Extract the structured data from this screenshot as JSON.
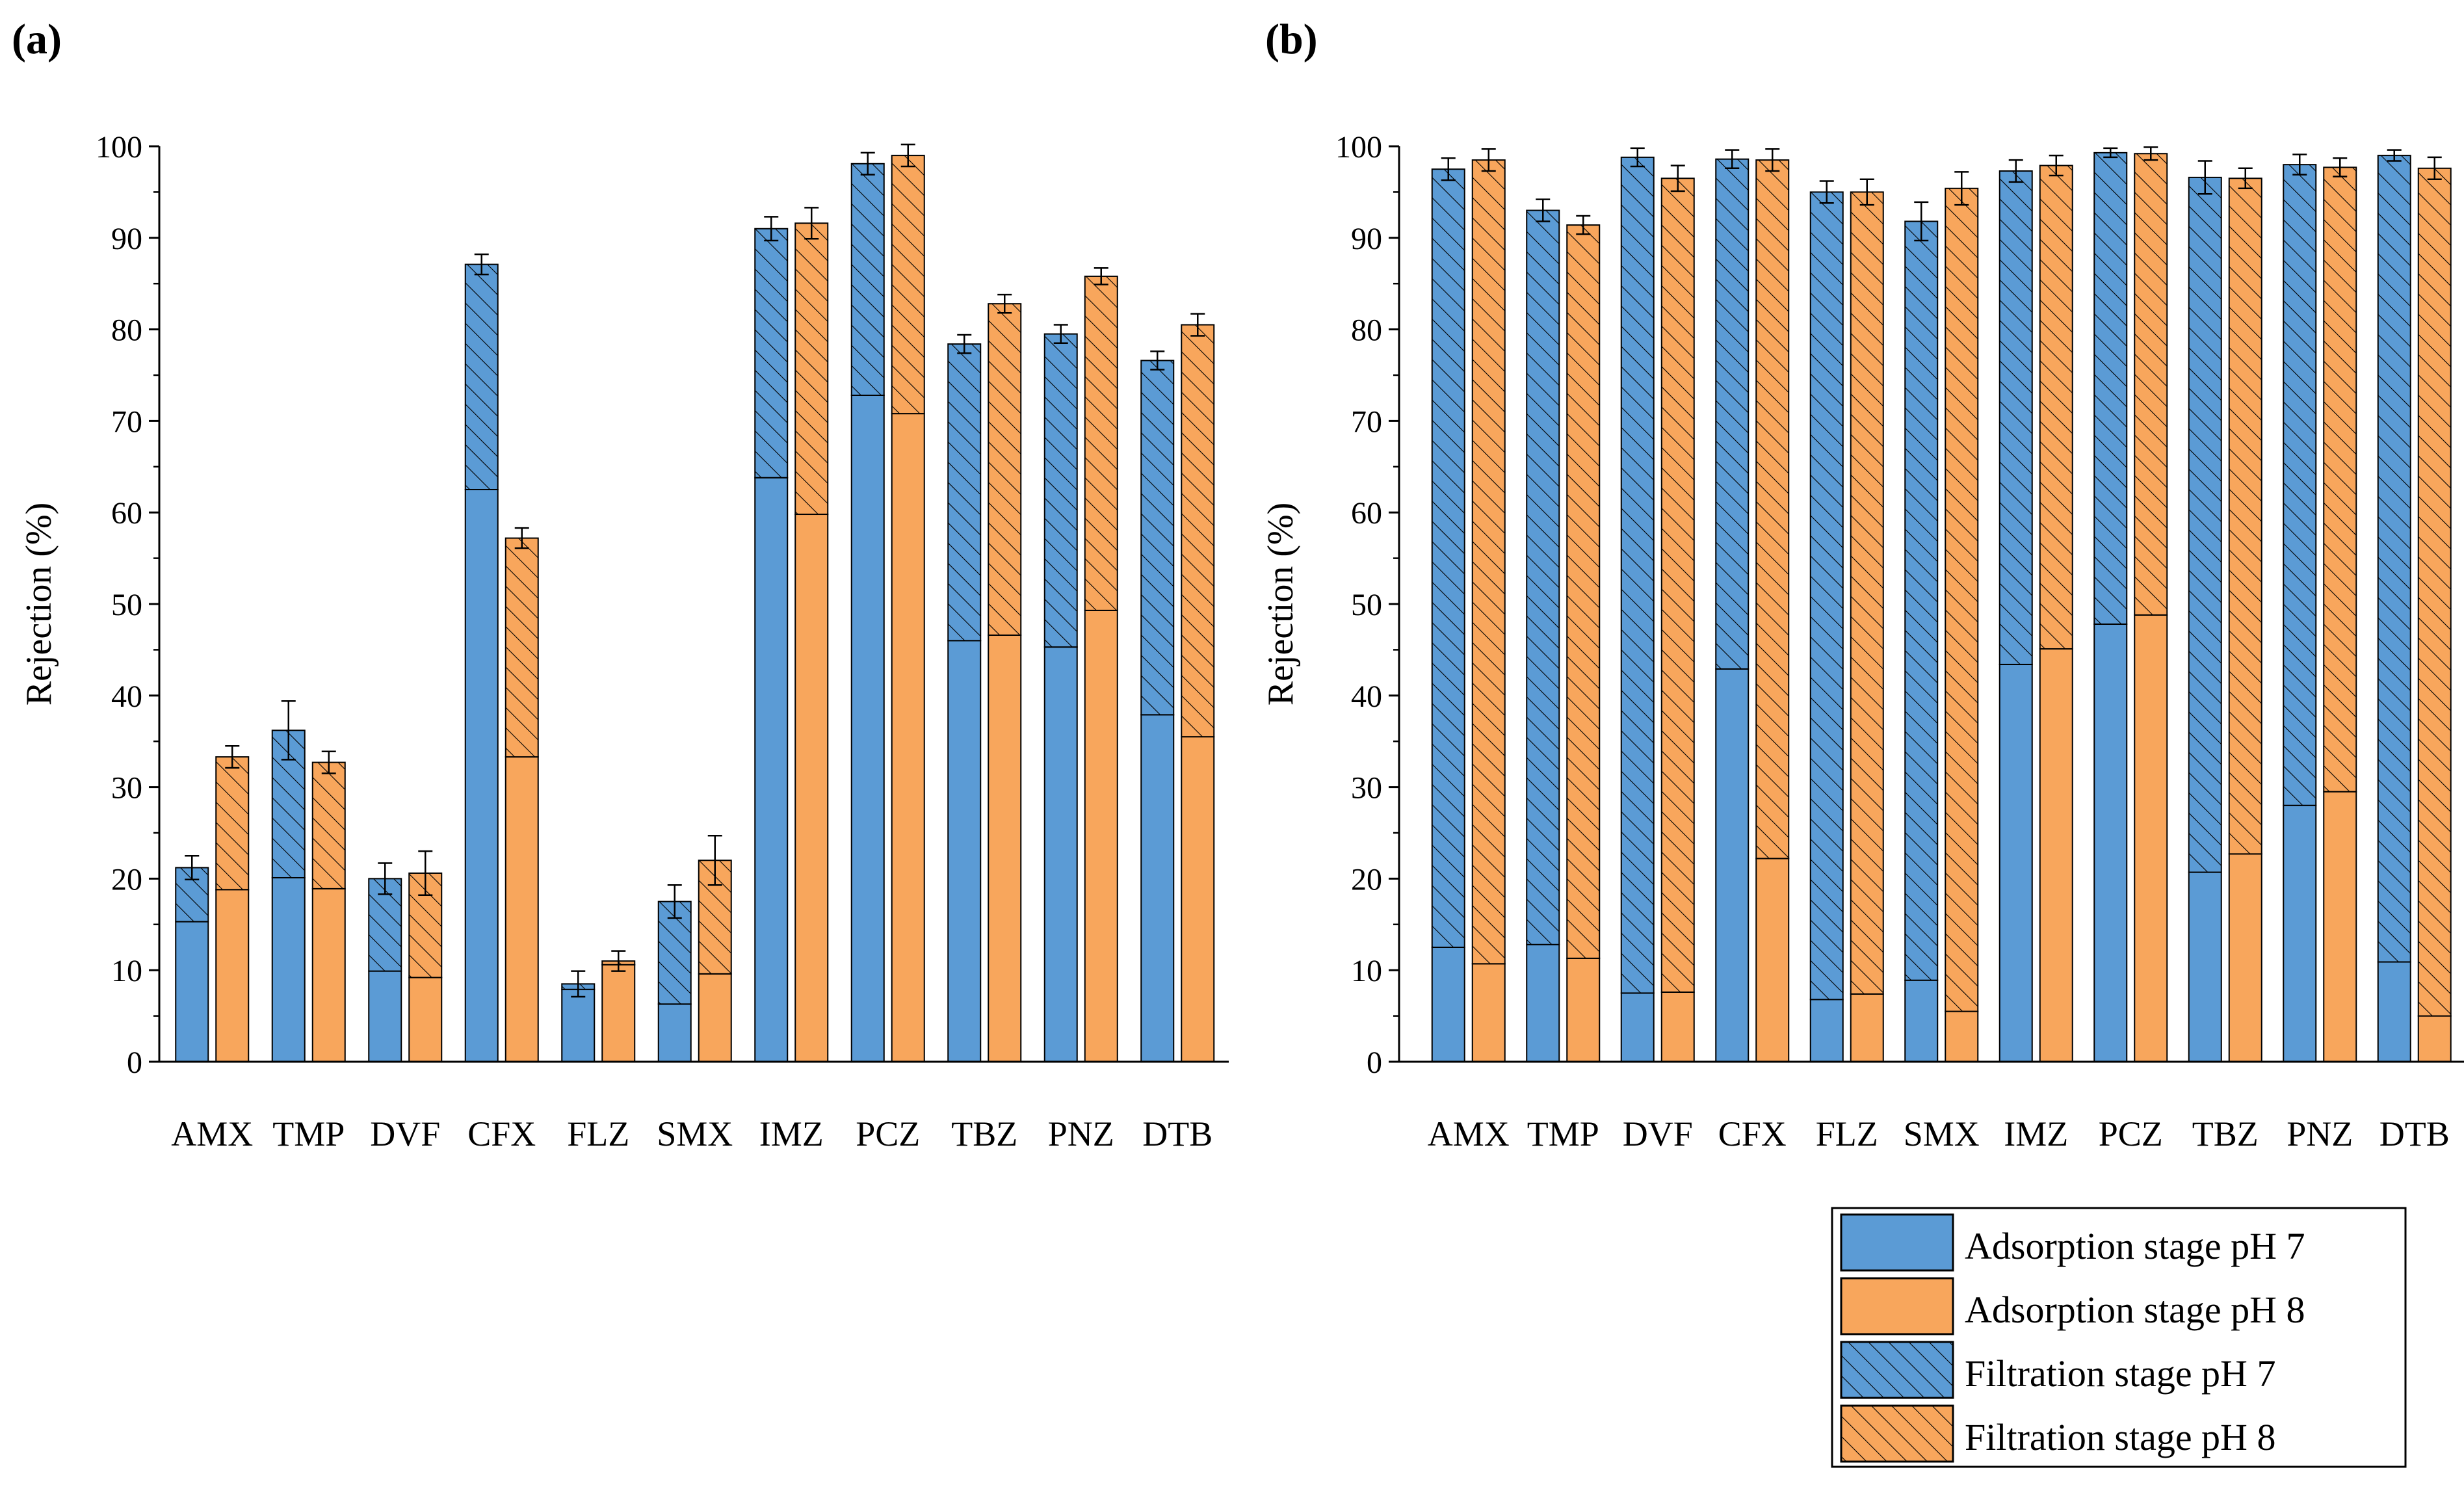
{
  "panel_labels": [
    "(a)",
    "(b)"
  ],
  "legend": {
    "entries": [
      "Adsorption stage pH 7",
      "Adsorption stage pH 8",
      "Filtration stage pH 7",
      "Filtration stage pH 8"
    ]
  },
  "colors": {
    "ph7": "#5B9BD5",
    "ph8": "#F8A65C",
    "edge": "#000000",
    "hatch": "#000000"
  },
  "chart_data": [
    {
      "type": "bar",
      "stacked": true,
      "grouped": true,
      "panel": "(a)",
      "ylabel": "Rejection (%)",
      "xlabel": "",
      "ylim": [
        0,
        100
      ],
      "yticks": [
        0,
        10,
        20,
        30,
        40,
        50,
        60,
        70,
        80,
        90,
        100
      ],
      "grid": false,
      "categories": [
        "AMX",
        "TMP",
        "DVF",
        "CFX",
        "FLZ",
        "SMX",
        "IMZ",
        "PCZ",
        "TBZ",
        "PNZ",
        "DTB"
      ],
      "series": [
        {
          "name": "Adsorption stage pH 7",
          "group": "pH 7",
          "pattern": "solid",
          "values": [
            15.3,
            20.1,
            9.9,
            62.5,
            7.9,
            6.3,
            63.8,
            72.8,
            46.0,
            45.3,
            37.9
          ]
        },
        {
          "name": "Filtration stage pH 7",
          "group": "pH 7",
          "pattern": "hatched",
          "values": [
            5.9,
            16.1,
            10.1,
            24.6,
            0.6,
            11.2,
            27.2,
            25.3,
            32.4,
            34.2,
            38.7
          ]
        },
        {
          "name": "Adsorption stage pH 8",
          "group": "pH 8",
          "pattern": "solid",
          "values": [
            18.8,
            18.9,
            9.2,
            33.3,
            10.6,
            9.6,
            59.8,
            70.8,
            46.6,
            49.3,
            35.5
          ]
        },
        {
          "name": "Filtration stage pH 8",
          "group": "pH 8",
          "pattern": "hatched",
          "values": [
            14.5,
            13.8,
            11.4,
            23.9,
            0.4,
            12.4,
            31.8,
            28.2,
            36.2,
            36.5,
            45.0
          ]
        }
      ],
      "error": {
        "pH 7": [
          1.3,
          3.2,
          1.7,
          1.1,
          1.4,
          1.8,
          1.3,
          1.2,
          1.0,
          1.0,
          1.0
        ],
        "pH 8": [
          1.2,
          1.2,
          2.4,
          1.1,
          1.1,
          2.7,
          1.7,
          1.2,
          1.0,
          0.9,
          1.2
        ]
      }
    },
    {
      "type": "bar",
      "stacked": true,
      "grouped": true,
      "panel": "(b)",
      "ylabel": "Rejection (%)",
      "xlabel": "",
      "ylim": [
        0,
        100
      ],
      "yticks": [
        0,
        10,
        20,
        30,
        40,
        50,
        60,
        70,
        80,
        90,
        100
      ],
      "grid": false,
      "categories": [
        "AMX",
        "TMP",
        "DVF",
        "CFX",
        "FLZ",
        "SMX",
        "IMZ",
        "PCZ",
        "TBZ",
        "PNZ",
        "DTB"
      ],
      "series": [
        {
          "name": "Adsorption stage pH 7",
          "group": "pH 7",
          "pattern": "solid",
          "values": [
            12.5,
            12.8,
            7.5,
            42.9,
            6.8,
            8.9,
            43.4,
            47.8,
            20.7,
            28.0,
            10.9
          ]
        },
        {
          "name": "Filtration stage pH 7",
          "group": "pH 7",
          "pattern": "hatched",
          "values": [
            85.0,
            80.2,
            91.3,
            55.7,
            88.2,
            82.9,
            53.9,
            51.5,
            75.9,
            70.0,
            88.1
          ]
        },
        {
          "name": "Adsorption stage pH 8",
          "group": "pH 8",
          "pattern": "solid",
          "values": [
            10.7,
            11.3,
            7.6,
            22.2,
            7.4,
            5.5,
            45.1,
            48.8,
            22.7,
            29.5,
            5.0
          ]
        },
        {
          "name": "Filtration stage pH 8",
          "group": "pH 8",
          "pattern": "hatched",
          "values": [
            87.8,
            80.1,
            88.9,
            76.3,
            87.6,
            89.9,
            52.8,
            50.4,
            73.8,
            68.2,
            92.6
          ]
        }
      ],
      "error": {
        "pH 7": [
          1.2,
          1.2,
          1.0,
          1.0,
          1.2,
          2.1,
          1.2,
          0.5,
          1.8,
          1.1,
          0.6
        ],
        "pH 8": [
          1.2,
          1.0,
          1.4,
          1.2,
          1.4,
          1.8,
          1.1,
          0.7,
          1.1,
          1.0,
          1.2
        ]
      }
    }
  ]
}
